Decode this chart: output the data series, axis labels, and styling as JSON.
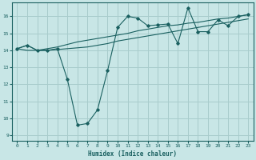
{
  "xlabel": "Humidex (Indice chaleur)",
  "bg_color": "#c8e6e6",
  "grid_color": "#a8cccc",
  "line_color": "#1a6060",
  "xlim": [
    -0.5,
    23.5
  ],
  "ylim": [
    8.7,
    16.8
  ],
  "xticks": [
    0,
    1,
    2,
    3,
    4,
    5,
    6,
    7,
    8,
    9,
    10,
    11,
    12,
    13,
    14,
    15,
    16,
    17,
    18,
    19,
    20,
    21,
    22,
    23
  ],
  "yticks": [
    9,
    10,
    11,
    12,
    13,
    14,
    15,
    16
  ],
  "line1_x": [
    0,
    1,
    2,
    3,
    4,
    5,
    6,
    7,
    8,
    9,
    10,
    11,
    12,
    13,
    14,
    15,
    16,
    17,
    18,
    19,
    20,
    21,
    22,
    23
  ],
  "line1_y": [
    14.1,
    14.3,
    14.0,
    14.0,
    14.05,
    14.1,
    14.15,
    14.2,
    14.3,
    14.4,
    14.55,
    14.65,
    14.75,
    14.85,
    14.95,
    15.05,
    15.15,
    15.25,
    15.35,
    15.45,
    15.55,
    15.65,
    15.75,
    15.85
  ],
  "line2_x": [
    0,
    1,
    2,
    3,
    4,
    5,
    6,
    7,
    8,
    9,
    10,
    11,
    12,
    13,
    14,
    15,
    16,
    17,
    18,
    19,
    20,
    21,
    22,
    23
  ],
  "line2_y": [
    14.1,
    14.3,
    14.0,
    14.0,
    14.1,
    12.3,
    9.6,
    9.7,
    10.5,
    12.8,
    15.35,
    16.0,
    15.9,
    15.45,
    15.5,
    15.55,
    14.4,
    16.5,
    15.1,
    15.1,
    15.8,
    15.45,
    16.0,
    16.1
  ],
  "line3_x": [
    0,
    1,
    2,
    3,
    4,
    5,
    6,
    7,
    8,
    9,
    10,
    11,
    12,
    13,
    14,
    15,
    16,
    17,
    18,
    19,
    20,
    21,
    22,
    23
  ],
  "line3_y": [
    14.1,
    14.0,
    14.0,
    14.1,
    14.2,
    14.35,
    14.5,
    14.6,
    14.7,
    14.8,
    14.9,
    15.0,
    15.15,
    15.25,
    15.35,
    15.45,
    15.5,
    15.6,
    15.65,
    15.75,
    15.85,
    15.9,
    16.0,
    16.1
  ]
}
